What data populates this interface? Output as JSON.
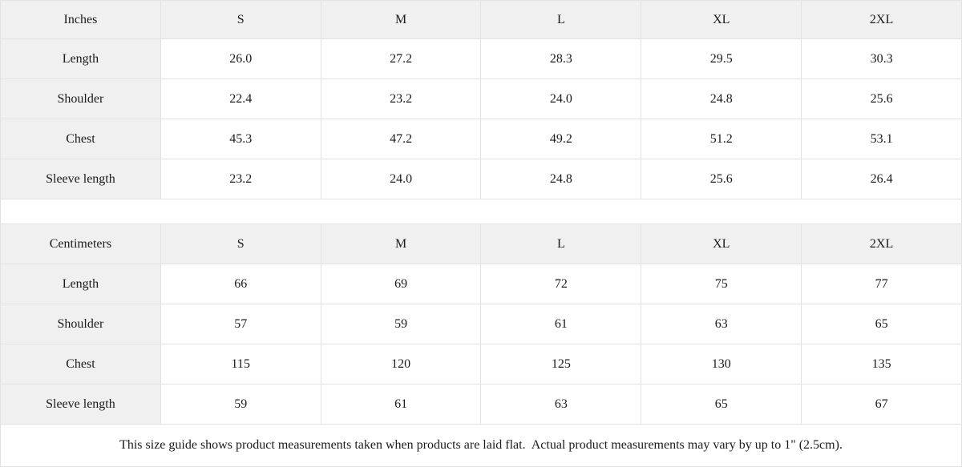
{
  "colors": {
    "header_bg": "#f0f0f0",
    "label_col_bg": "#f0f0f0",
    "border": "#e2e2e2",
    "text": "#1b1b1b",
    "page_bg": "#ffffff"
  },
  "inches_table": {
    "header": {
      "label": "Inches",
      "sizes": [
        "S",
        "M",
        "L",
        "XL",
        "2XL"
      ]
    },
    "rows": [
      {
        "label": "Length",
        "values": [
          "26.0",
          "27.2",
          "28.3",
          "29.5",
          "30.3"
        ]
      },
      {
        "label": "Shoulder",
        "values": [
          "22.4",
          "23.2",
          "24.0",
          "24.8",
          "25.6"
        ]
      },
      {
        "label": "Chest",
        "values": [
          "45.3",
          "47.2",
          "49.2",
          "51.2",
          "53.1"
        ]
      },
      {
        "label": "Sleeve length",
        "values": [
          "23.2",
          "24.0",
          "24.8",
          "25.6",
          "26.4"
        ]
      }
    ]
  },
  "cm_table": {
    "header": {
      "label": "Centimeters",
      "sizes": [
        "S",
        "M",
        "L",
        "XL",
        "2XL"
      ]
    },
    "rows": [
      {
        "label": "Length",
        "values": [
          "66",
          "69",
          "72",
          "75",
          "77"
        ]
      },
      {
        "label": "Shoulder",
        "values": [
          "57",
          "59",
          "61",
          "63",
          "65"
        ]
      },
      {
        "label": "Chest",
        "values": [
          "115",
          "120",
          "125",
          "130",
          "135"
        ]
      },
      {
        "label": "Sleeve length",
        "values": [
          "59",
          "61",
          "63",
          "65",
          "67"
        ]
      }
    ]
  },
  "footer_note": "This size guide shows product measurements taken when products are laid flat.  Actual product measurements may vary by up to 1\" (2.5cm)."
}
